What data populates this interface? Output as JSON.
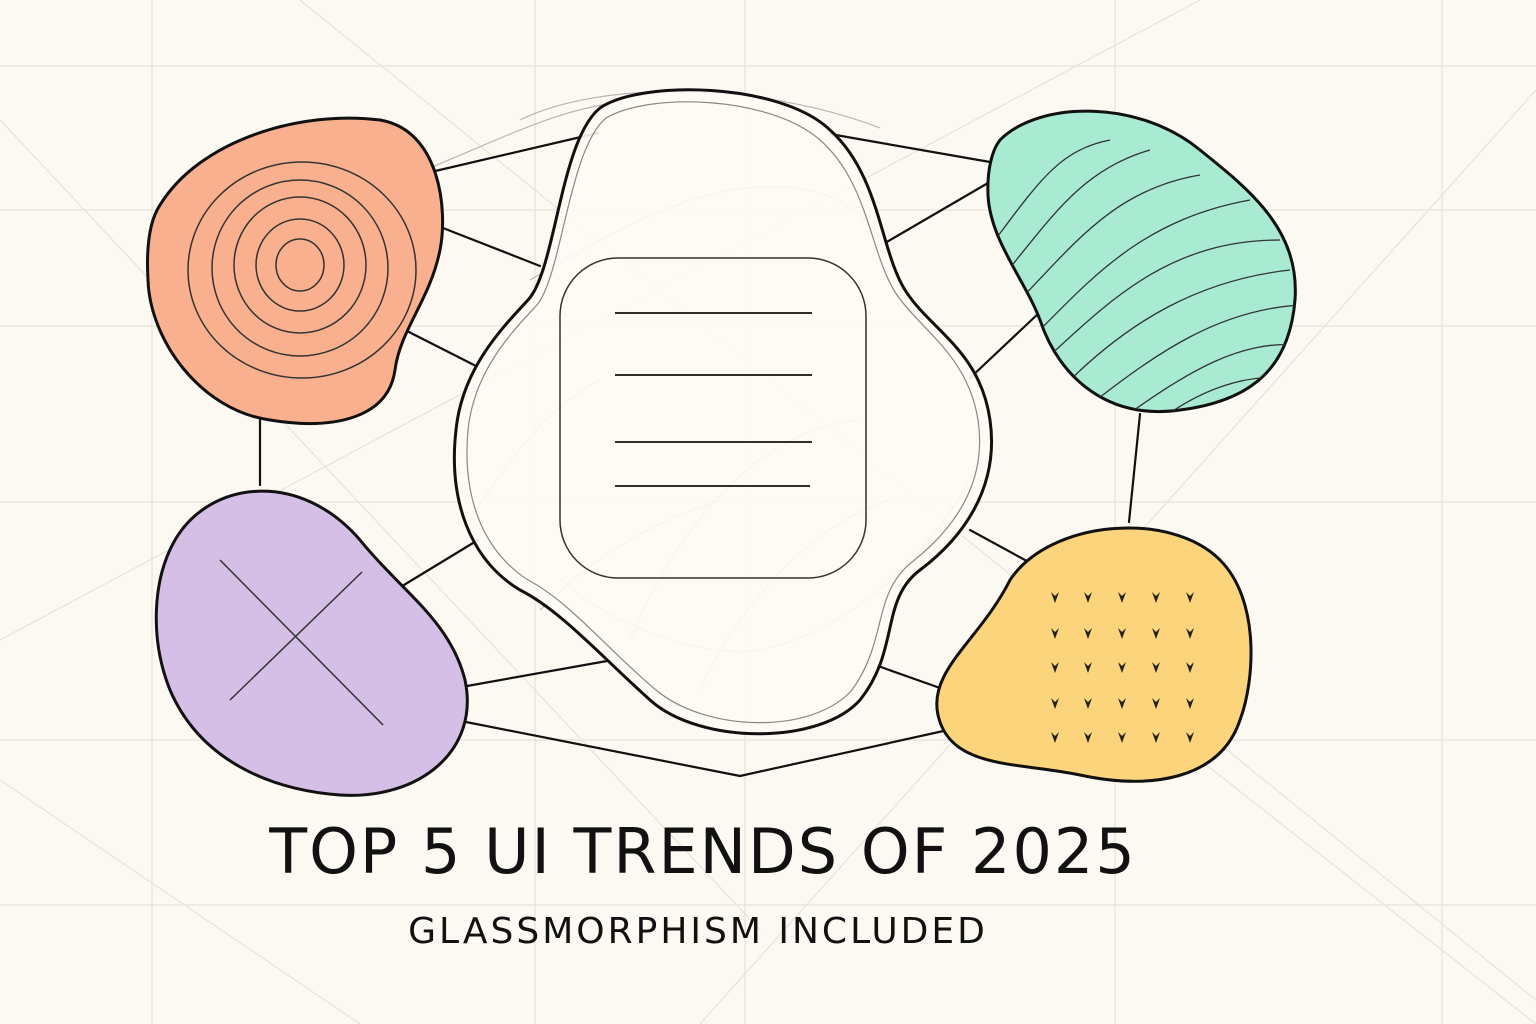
{
  "poster": {
    "title": "TOP 5 UI TRENDS OF 2025",
    "subtitle": "GLASSMORPHISM INCLUDED"
  },
  "palette": {
    "background": "#fbf9f1",
    "grid": "#e6e3d8",
    "stroke": "#111111",
    "coral_blob": "#f9b08e",
    "mint_blob": "#a8ead2",
    "lavender_blob": "#d6bfe6",
    "yellow_blob": "#fbd47c",
    "glass_center": "#fdfbf4"
  },
  "diagram": {
    "nodes": [
      {
        "id": "coral",
        "pattern": "concentric-circles"
      },
      {
        "id": "mint",
        "pattern": "wavy-lines"
      },
      {
        "id": "glass",
        "pattern": "text-lines"
      },
      {
        "id": "lavender",
        "pattern": "cross"
      },
      {
        "id": "yellow",
        "pattern": "dot-grid"
      }
    ]
  }
}
